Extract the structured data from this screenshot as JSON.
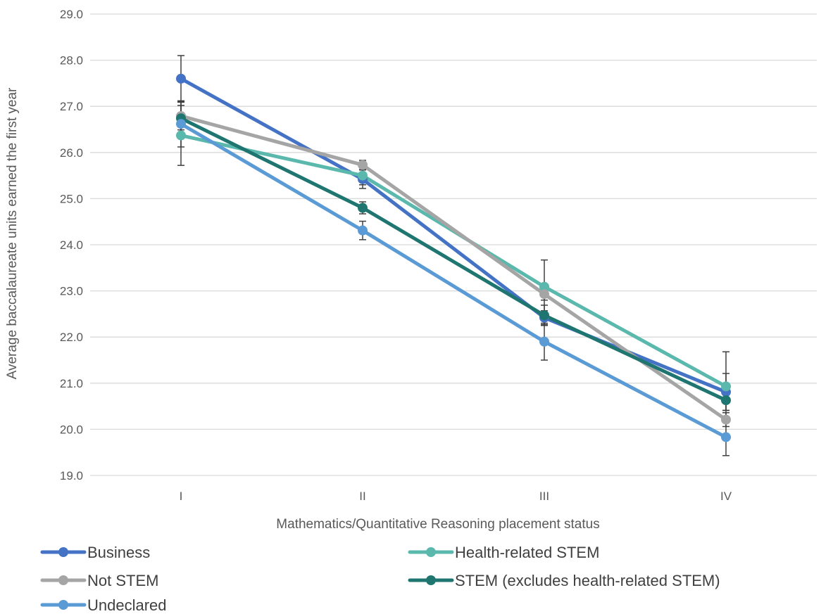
{
  "chart_data": {
    "type": "line",
    "title": "",
    "xlabel": "Mathematics/Quantitative Reasoning placement status",
    "ylabel": "Average baccalaureate units earned the first year",
    "categories": [
      "I",
      "II",
      "III",
      "IV"
    ],
    "ylim": [
      19.0,
      29.0
    ],
    "yticks": [
      19.0,
      20.0,
      21.0,
      22.0,
      23.0,
      24.0,
      25.0,
      26.0,
      27.0,
      28.0,
      29.0
    ],
    "grid": true,
    "legend_position": "bottom",
    "error_bars": true,
    "series": [
      {
        "name": "Business",
        "color": "#4472C4",
        "values": [
          27.6,
          25.42,
          22.42,
          20.81
        ],
        "error": [
          0.5,
          0.2,
          0.15,
          0.4
        ]
      },
      {
        "name": "Health-related STEM",
        "color": "#5BB8AC",
        "values": [
          26.37,
          25.5,
          23.09,
          20.93
        ],
        "error": [
          0.65,
          0.2,
          0.58,
          0.75
        ]
      },
      {
        "name": "Not STEM",
        "color": "#A5A5A5",
        "values": [
          26.79,
          25.73,
          22.93,
          20.21
        ],
        "error": [
          0.3,
          0.1,
          0.13,
          0.15
        ]
      },
      {
        "name": "STEM (excludes health-related STEM)",
        "color": "#1F7671",
        "values": [
          26.74,
          24.8,
          22.47,
          20.63
        ],
        "error": [
          0.35,
          0.13,
          0.22,
          0.22
        ]
      },
      {
        "name": "Undeclared",
        "color": "#5B9BD5",
        "values": [
          26.62,
          24.31,
          21.9,
          19.83
        ],
        "error": [
          0.5,
          0.2,
          0.4,
          0.4
        ]
      }
    ]
  }
}
